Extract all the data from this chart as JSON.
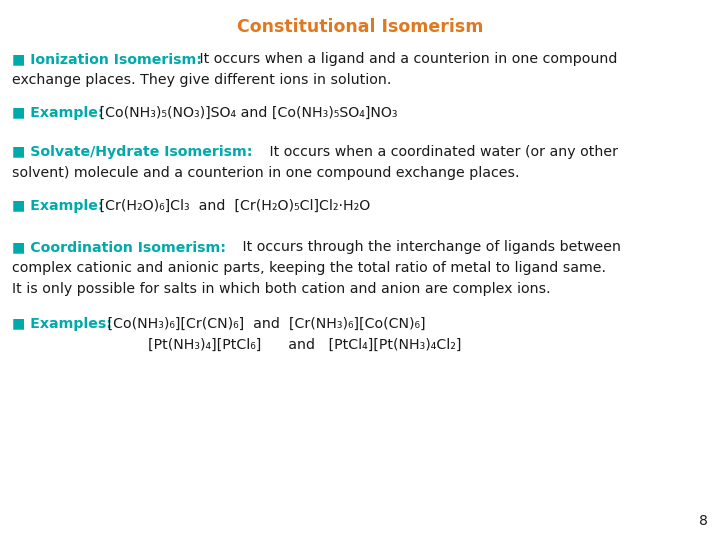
{
  "title": "Constitutional Isomerism",
  "title_color": "#E07820",
  "bg_color": "#FFFFFF",
  "teal_color": "#00AAAA",
  "black_color": "#1A1A1A",
  "page_number": "8",
  "figw": 7.2,
  "figh": 5.4,
  "dpi": 100
}
